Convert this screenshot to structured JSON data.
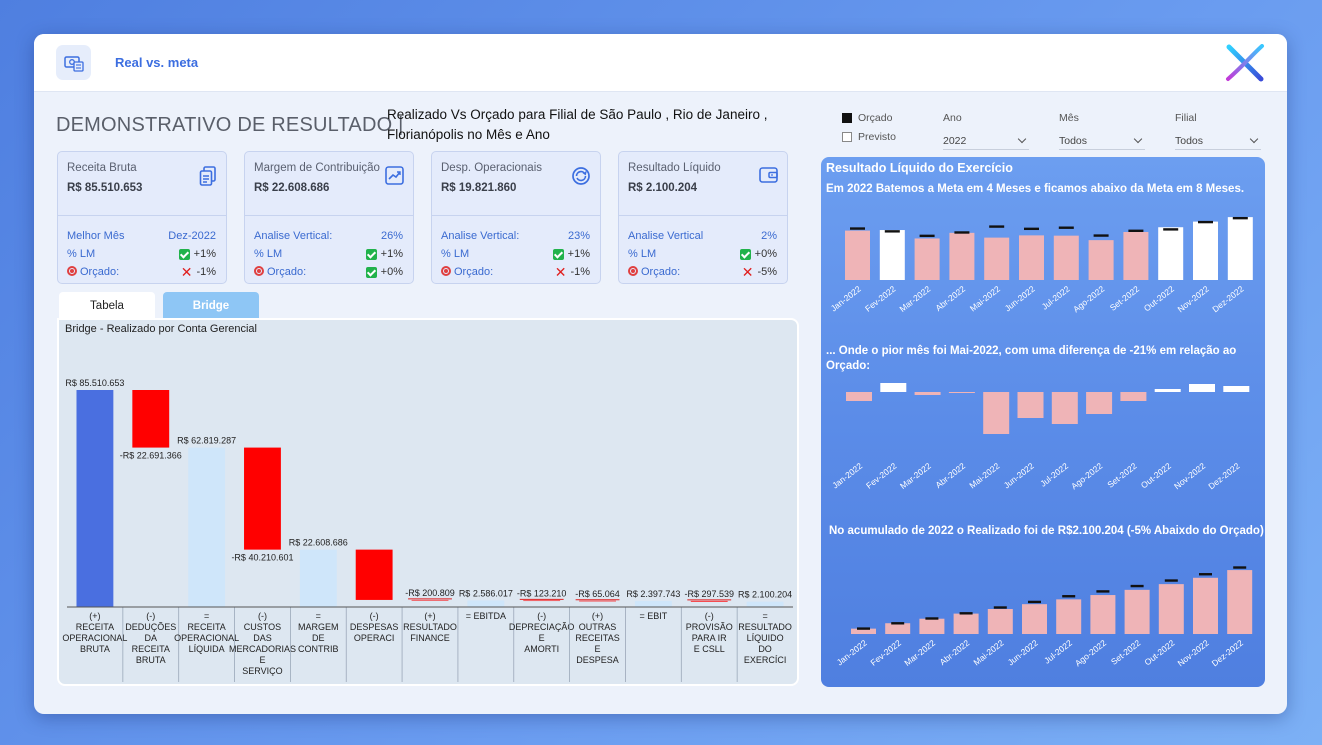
{
  "header": {
    "app_title": "Real vs. meta"
  },
  "page": {
    "title": "DEMONSTRATIVO DE RESULTADO |",
    "subtitle_line1": "Realizado Vs Orçado para Filial de São Paulo , Rio de Janeiro ,",
    "subtitle_line2": "Florianópolis no Mês e Ano"
  },
  "kpis": [
    {
      "label": "Receita Bruta",
      "value": "R$ 85.510.653",
      "icon": "documents-icon",
      "row1_label": "Melhor Mês",
      "row1_value": "Dez-2022",
      "row2_label": "% LM",
      "row2_value": "+1%",
      "row2_status": "up",
      "row3_label": "Orçado:",
      "row3_value": "-1%",
      "row3_status": "down"
    },
    {
      "label": "Margem de Contribuição",
      "value": "R$ 22.608.686",
      "icon": "trend-chart-icon",
      "row1_label": "Analise Vertical:",
      "row1_value": "26%",
      "row2_label": "% LM",
      "row2_value": "+1%",
      "row2_status": "up",
      "row3_label": "Orçado:",
      "row3_value": "+0%",
      "row3_status": "up"
    },
    {
      "label": "Desp. Operacionais",
      "value": "R$ 19.821.860",
      "icon": "cycle-icon",
      "row1_label": "Analise Vertical:",
      "row1_value": "23%",
      "row2_label": "% LM",
      "row2_value": "+1%",
      "row2_status": "up",
      "row3_label": "Orçado:",
      "row3_value": "-1%",
      "row3_status": "down"
    },
    {
      "label": "Resultado Líquido",
      "value": "R$ 2.100.204",
      "icon": "wallet-icon",
      "row1_label": "Analise Vertical",
      "row1_value": "2%",
      "row2_label": "% LM",
      "row2_value": "+0%",
      "row2_status": "up",
      "row3_label": "Orçado:",
      "row3_value": "-5%",
      "row3_status": "down"
    }
  ],
  "tabs": {
    "tabela": "Tabela",
    "bridge": "Bridge"
  },
  "bridge": {
    "title": "Bridge - Realizado por Conta Gerencial"
  },
  "filters": {
    "legend_orcado": "Orçado",
    "legend_previsto": "Previsto",
    "ano_label": "Ano",
    "ano_value": "2022",
    "mes_label": "Mês",
    "mes_value": "Todos",
    "filial_label": "Filial",
    "filial_value": "Todos"
  },
  "right_panel": {
    "title": "Resultado Líquido do Exercício",
    "text1": "Em 2022 Batemos a Meta em 4 Meses e ficamos abaixo da Meta em 8 Meses.",
    "text2": "... Onde o pior mês foi Mai-2022, com uma diferença de -21% em relação ao Orçado:",
    "text3": "No acumulado de 2022 o Realizado foi de R$2.100.204 (-5% Abaixdo do Orçado)"
  },
  "colors": {
    "bar_positive": "#4a6fe0",
    "bar_negative": "#ff0000",
    "bar_subtotal": "#cfe6fa",
    "bar_pink": "#efb4b7",
    "bar_white": "#ffffff"
  },
  "chart_data": [
    {
      "type": "bar",
      "subtype": "waterfall",
      "title": "Bridge - Realizado por Conta Gerencial",
      "categories": [
        "(+) RECEITA OPERACIONAL BRUTA",
        "(-) DEDUÇÕES DA RECEITA BRUTA",
        "= RECEITA OPERACIONAL LÍQUIDA",
        "(-) CUSTOS DAS MERCADORIAS E SERVIÇO",
        "= MARGEM DE CONTRIB",
        "(-) DESPESAS OPERACI",
        "(+) RESULTADO FINANCE",
        "= EBITDA",
        "(-) DEPRECIAÇÃO E AMORTI",
        "(+) OUTRAS RECEITAS E DESPESA",
        "= EBIT",
        "(-) PROVISÃO PARA IR E CSLL",
        "= RESULTADO LÍQUIDO DO EXERCÍCI"
      ],
      "category_lines": [
        [
          "(+)",
          "RECEITA",
          "OPERACIONAL",
          "BRUTA"
        ],
        [
          "(-)",
          "DEDUÇÕES",
          "DA",
          "RECEITA",
          "BRUTA"
        ],
        [
          "=",
          "RECEITA",
          "OPERACIONAL",
          "LÍQUIDA"
        ],
        [
          "(-)",
          "CUSTOS",
          "DAS",
          "MERCADORIAS",
          "E",
          "SERVIÇO"
        ],
        [
          "=",
          "MARGEM",
          "DE",
          "CONTRIB"
        ],
        [
          "(-)",
          "DESPESAS",
          "OPERACI"
        ],
        [
          "(+)",
          "RESULTADO",
          "FINANCE"
        ],
        [
          "= EBITDA"
        ],
        [
          "(-)",
          "DEPRECIAÇÃO",
          "E",
          "AMORTI"
        ],
        [
          "(+)",
          "OUTRAS",
          "RECEITAS",
          "E",
          "DESPESA"
        ],
        [
          "= EBIT"
        ],
        [
          "(-)",
          "PROVISÃO",
          "PARA IR",
          "E CSLL"
        ],
        [
          "=",
          "RESULTADO",
          "LÍQUIDO",
          "DO",
          "EXERCÍCI"
        ]
      ],
      "values": [
        85510653,
        -22691366,
        62819287,
        -40210601,
        22608686,
        -19821860,
        -200809,
        2586017,
        -123210,
        -65064,
        2397743,
        -297539,
        2100204
      ],
      "kinds": [
        "positive",
        "negative",
        "subtotal",
        "negative",
        "subtotal",
        "negative",
        "negative",
        "subtotal",
        "negative",
        "negative",
        "subtotal",
        "negative",
        "subtotal"
      ],
      "labels": [
        "R$ 85.510.653",
        "-R$ 22.691.366",
        "R$ 62.819.287",
        "-R$ 40.210.601",
        "R$ 22.608.686",
        "",
        "-R$ 200.809",
        "R$ 2.586.017",
        "-R$ 123.210",
        "-R$ 65.064",
        "R$ 2.397.743",
        "-R$ 297.539",
        "R$ 2.100.204"
      ]
    },
    {
      "type": "bar",
      "title": "Resultado Líquido do Exercício",
      "categories": [
        "Jan-2022",
        "Fev-2022",
        "Mar-2022",
        "Abr-2022",
        "Mai-2022",
        "Jun-2022",
        "Jul-2022",
        "Ago-2022",
        "Set-2022",
        "Out-2022",
        "Nov-2022",
        "Dez-2022"
      ],
      "series": [
        {
          "name": "Previsto",
          "values": [
            176000,
            178000,
            148000,
            168000,
            151000,
            159000,
            158000,
            142000,
            171000,
            188000,
            208000,
            224000
          ]
        },
        {
          "name": "Orçado",
          "values": [
            184000,
            174000,
            158000,
            170000,
            191000,
            183000,
            187000,
            159000,
            176000,
            181000,
            207000,
            221000
          ]
        }
      ],
      "met_target": [
        false,
        true,
        false,
        false,
        false,
        false,
        false,
        false,
        false,
        true,
        true,
        true
      ],
      "ylim": [
        0,
        240000
      ]
    },
    {
      "type": "bar",
      "title": "... Onde o pior mês foi Mai-2022, com uma diferença de -21% em relação ao Orçado:",
      "categories": [
        "Jan-2022",
        "Fev-2022",
        "Mar-2022",
        "Abr-2022",
        "Mai-2022",
        "Jun-2022",
        "Jul-2022",
        "Ago-2022",
        "Set-2022",
        "Out-2022",
        "Nov-2022",
        "Dez-2022"
      ],
      "values": [
        -4.5,
        4.5,
        -1.5,
        -0.5,
        -21,
        -13,
        -16,
        -11,
        -4.5,
        1.5,
        4,
        3
      ],
      "ylim": [
        -22,
        6
      ]
    },
    {
      "type": "bar",
      "title": "No acumulado de 2022 o Realizado foi de R$2.100.204 (-5% Abaixdo do Orçado)",
      "categories": [
        "Jan-2022",
        "Fev-2022",
        "Mar-2022",
        "Abr-2022",
        "Mai-2022",
        "Jun-2022",
        "Jul-2022",
        "Ago-2022",
        "Set-2022",
        "Out-2022",
        "Nov-2022",
        "Dez-2022"
      ],
      "series": [
        {
          "name": "Previsto",
          "values": [
            176000,
            354000,
            502000,
            670000,
            821000,
            980000,
            1138000,
            1280000,
            1451000,
            1639000,
            1847000,
            2100204
          ]
        },
        {
          "name": "Orçado",
          "values": [
            184000,
            358000,
            516000,
            686000,
            877000,
            1060000,
            1247000,
            1406000,
            1582000,
            1763000,
            1970000,
            2191000
          ]
        }
      ],
      "ylim": [
        0,
        2300000
      ]
    }
  ]
}
